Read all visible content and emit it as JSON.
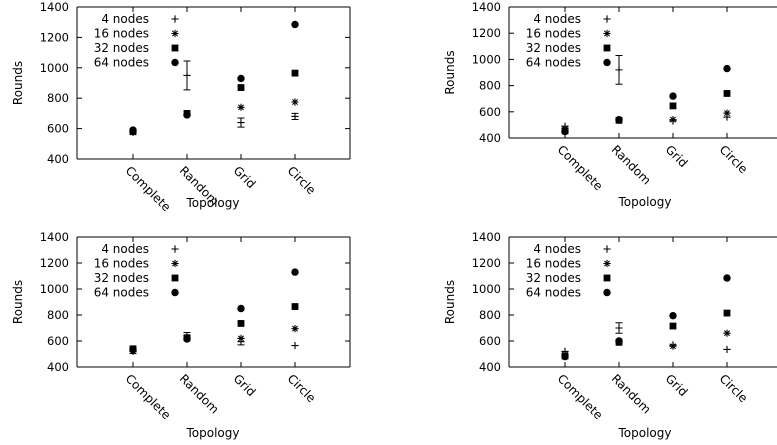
{
  "chart_data": [
    {
      "type": "scatter",
      "title": "",
      "xlabel": "Topology",
      "ylabel": "Rounds",
      "categories": [
        "Complete",
        "Random",
        "Grid",
        "Circle"
      ],
      "ylim": [
        400,
        1400
      ],
      "yticks": [
        400,
        600,
        800,
        1000,
        1200,
        1400
      ],
      "grid": false,
      "legend_position": "top-left",
      "series": [
        {
          "name": "4 nodes",
          "marker": "plus",
          "values": [
            580,
            950,
            640,
            680
          ],
          "errors": [
            null,
            95,
            30,
            20
          ]
        },
        {
          "name": "16 nodes",
          "marker": "star",
          "values": [
            575,
            690,
            740,
            775
          ],
          "errors": [
            null,
            null,
            null,
            null
          ]
        },
        {
          "name": "32 nodes",
          "marker": "square",
          "values": [
            580,
            700,
            870,
            965
          ],
          "errors": [
            null,
            null,
            null,
            null
          ]
        },
        {
          "name": "64 nodes",
          "marker": "circle",
          "values": [
            590,
            690,
            930,
            1285
          ],
          "errors": [
            null,
            null,
            null,
            null
          ]
        }
      ]
    },
    {
      "type": "scatter",
      "title": "",
      "xlabel": "Topology",
      "ylabel": "Rounds",
      "categories": [
        "Complete",
        "Random",
        "Grid",
        "Circle"
      ],
      "ylim": [
        400,
        1400
      ],
      "yticks": [
        400,
        600,
        800,
        1000,
        1200,
        1400
      ],
      "grid": false,
      "legend_position": "top-left",
      "series": [
        {
          "name": "4 nodes",
          "marker": "plus",
          "values": [
            490,
            920,
            530,
            560
          ],
          "errors": [
            null,
            110,
            null,
            null
          ]
        },
        {
          "name": "16 nodes",
          "marker": "star",
          "values": [
            470,
            535,
            540,
            590
          ],
          "errors": [
            null,
            null,
            null,
            null
          ]
        },
        {
          "name": "32 nodes",
          "marker": "square",
          "values": [
            455,
            535,
            645,
            740
          ],
          "errors": [
            null,
            null,
            null,
            null
          ]
        },
        {
          "name": "64 nodes",
          "marker": "circle",
          "values": [
            450,
            540,
            720,
            930
          ],
          "errors": [
            null,
            null,
            null,
            null
          ]
        }
      ]
    },
    {
      "type": "scatter",
      "title": "",
      "xlabel": "Topology",
      "ylabel": "Rounds",
      "categories": [
        "Complete",
        "Random",
        "Grid",
        "Circle"
      ],
      "ylim": [
        400,
        1400
      ],
      "yticks": [
        400,
        600,
        800,
        1000,
        1200,
        1400
      ],
      "grid": false,
      "legend_position": "top-left",
      "series": [
        {
          "name": "4 nodes",
          "marker": "plus",
          "values": [
            525,
            640,
            595,
            565
          ],
          "errors": [
            20,
            25,
            25,
            null
          ]
        },
        {
          "name": "16 nodes",
          "marker": "star",
          "values": [
            520,
            625,
            620,
            695
          ],
          "errors": [
            null,
            null,
            null,
            null
          ]
        },
        {
          "name": "32 nodes",
          "marker": "square",
          "values": [
            540,
            625,
            735,
            865
          ],
          "errors": [
            null,
            null,
            null,
            null
          ]
        },
        {
          "name": "64 nodes",
          "marker": "circle",
          "values": [
            535,
            615,
            850,
            1130
          ],
          "errors": [
            null,
            null,
            null,
            null
          ]
        }
      ]
    },
    {
      "type": "scatter",
      "title": "",
      "xlabel": "Topology",
      "ylabel": "Rounds",
      "categories": [
        "Complete",
        "Random",
        "Grid",
        "Circle"
      ],
      "ylim": [
        400,
        1400
      ],
      "yticks": [
        400,
        600,
        800,
        1000,
        1200,
        1400
      ],
      "grid": false,
      "legend_position": "top-left",
      "series": [
        {
          "name": "4 nodes",
          "marker": "plus",
          "values": [
            520,
            700,
            570,
            535
          ],
          "errors": [
            null,
            40,
            null,
            null
          ]
        },
        {
          "name": "16 nodes",
          "marker": "star",
          "values": [
            495,
            590,
            560,
            660
          ],
          "errors": [
            null,
            null,
            null,
            null
          ]
        },
        {
          "name": "32 nodes",
          "marker": "square",
          "values": [
            485,
            590,
            715,
            815
          ],
          "errors": [
            null,
            null,
            null,
            null
          ]
        },
        {
          "name": "64 nodes",
          "marker": "circle",
          "values": [
            480,
            600,
            795,
            1085
          ],
          "errors": [
            null,
            null,
            null,
            null
          ]
        }
      ]
    }
  ]
}
